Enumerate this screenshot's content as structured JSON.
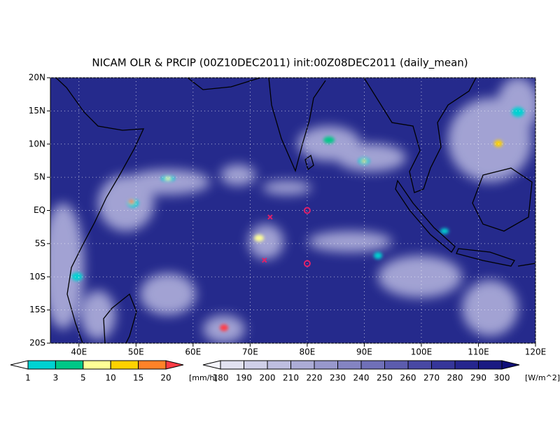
{
  "map": {
    "title": "NICAM OLR & PRCIP (00Z10DEC2011) init:00Z08DEC2011 (daily_mean)",
    "lonlim": [
      35,
      120
    ],
    "latlim": [
      -20,
      20
    ],
    "grid": true,
    "lon_ticks": [
      {
        "value": 40,
        "label": "40E"
      },
      {
        "value": 50,
        "label": "50E"
      },
      {
        "value": 60,
        "label": "60E"
      },
      {
        "value": 70,
        "label": "70E"
      },
      {
        "value": 80,
        "label": "80E"
      },
      {
        "value": 90,
        "label": "90E"
      },
      {
        "value": 100,
        "label": "100E"
      },
      {
        "value": 110,
        "label": "110E"
      },
      {
        "value": 120,
        "label": "120E"
      }
    ],
    "lat_ticks": [
      {
        "value": 20,
        "label": "20N"
      },
      {
        "value": 15,
        "label": "15N"
      },
      {
        "value": 10,
        "label": "10N"
      },
      {
        "value": 5,
        "label": "5N"
      },
      {
        "value": 0,
        "label": "EQ"
      },
      {
        "value": -5,
        "label": "5S"
      },
      {
        "value": -10,
        "label": "10S"
      },
      {
        "value": -15,
        "label": "15S"
      },
      {
        "value": -20,
        "label": "20S"
      }
    ],
    "markers": [
      {
        "lon": 73.5,
        "lat": -1,
        "symbol": "x"
      },
      {
        "lon": 72.5,
        "lat": -7.5,
        "symbol": "x"
      },
      {
        "lon": 80,
        "lat": 0,
        "symbol": "o"
      },
      {
        "lon": 80,
        "lat": -8,
        "symbol": "o"
      }
    ],
    "marker_color": "#e0206a",
    "precip_bar": {
      "levels": [
        1,
        3,
        5,
        10,
        15,
        20
      ],
      "colors": [
        "#ffffff",
        "#00d2d2",
        "#00c887",
        "#ffff96",
        "#ffd200",
        "#ff8228",
        "#ff3c46"
      ],
      "unit": "[mm/h]"
    },
    "olr_bar": {
      "levels": [
        180,
        190,
        200,
        210,
        220,
        230,
        240,
        250,
        260,
        270,
        280,
        290,
        300
      ],
      "colors": [
        "#f4f4fa",
        "#e2e2f0",
        "#d0d0e8",
        "#bebee0",
        "#acacd6",
        "#9898cc",
        "#8484c2",
        "#7070b8",
        "#5c5cae",
        "#4848a4",
        "#36369a",
        "#26268e",
        "#1a1a82",
        "#10107a"
      ],
      "unit": "[W/m^2]"
    }
  }
}
